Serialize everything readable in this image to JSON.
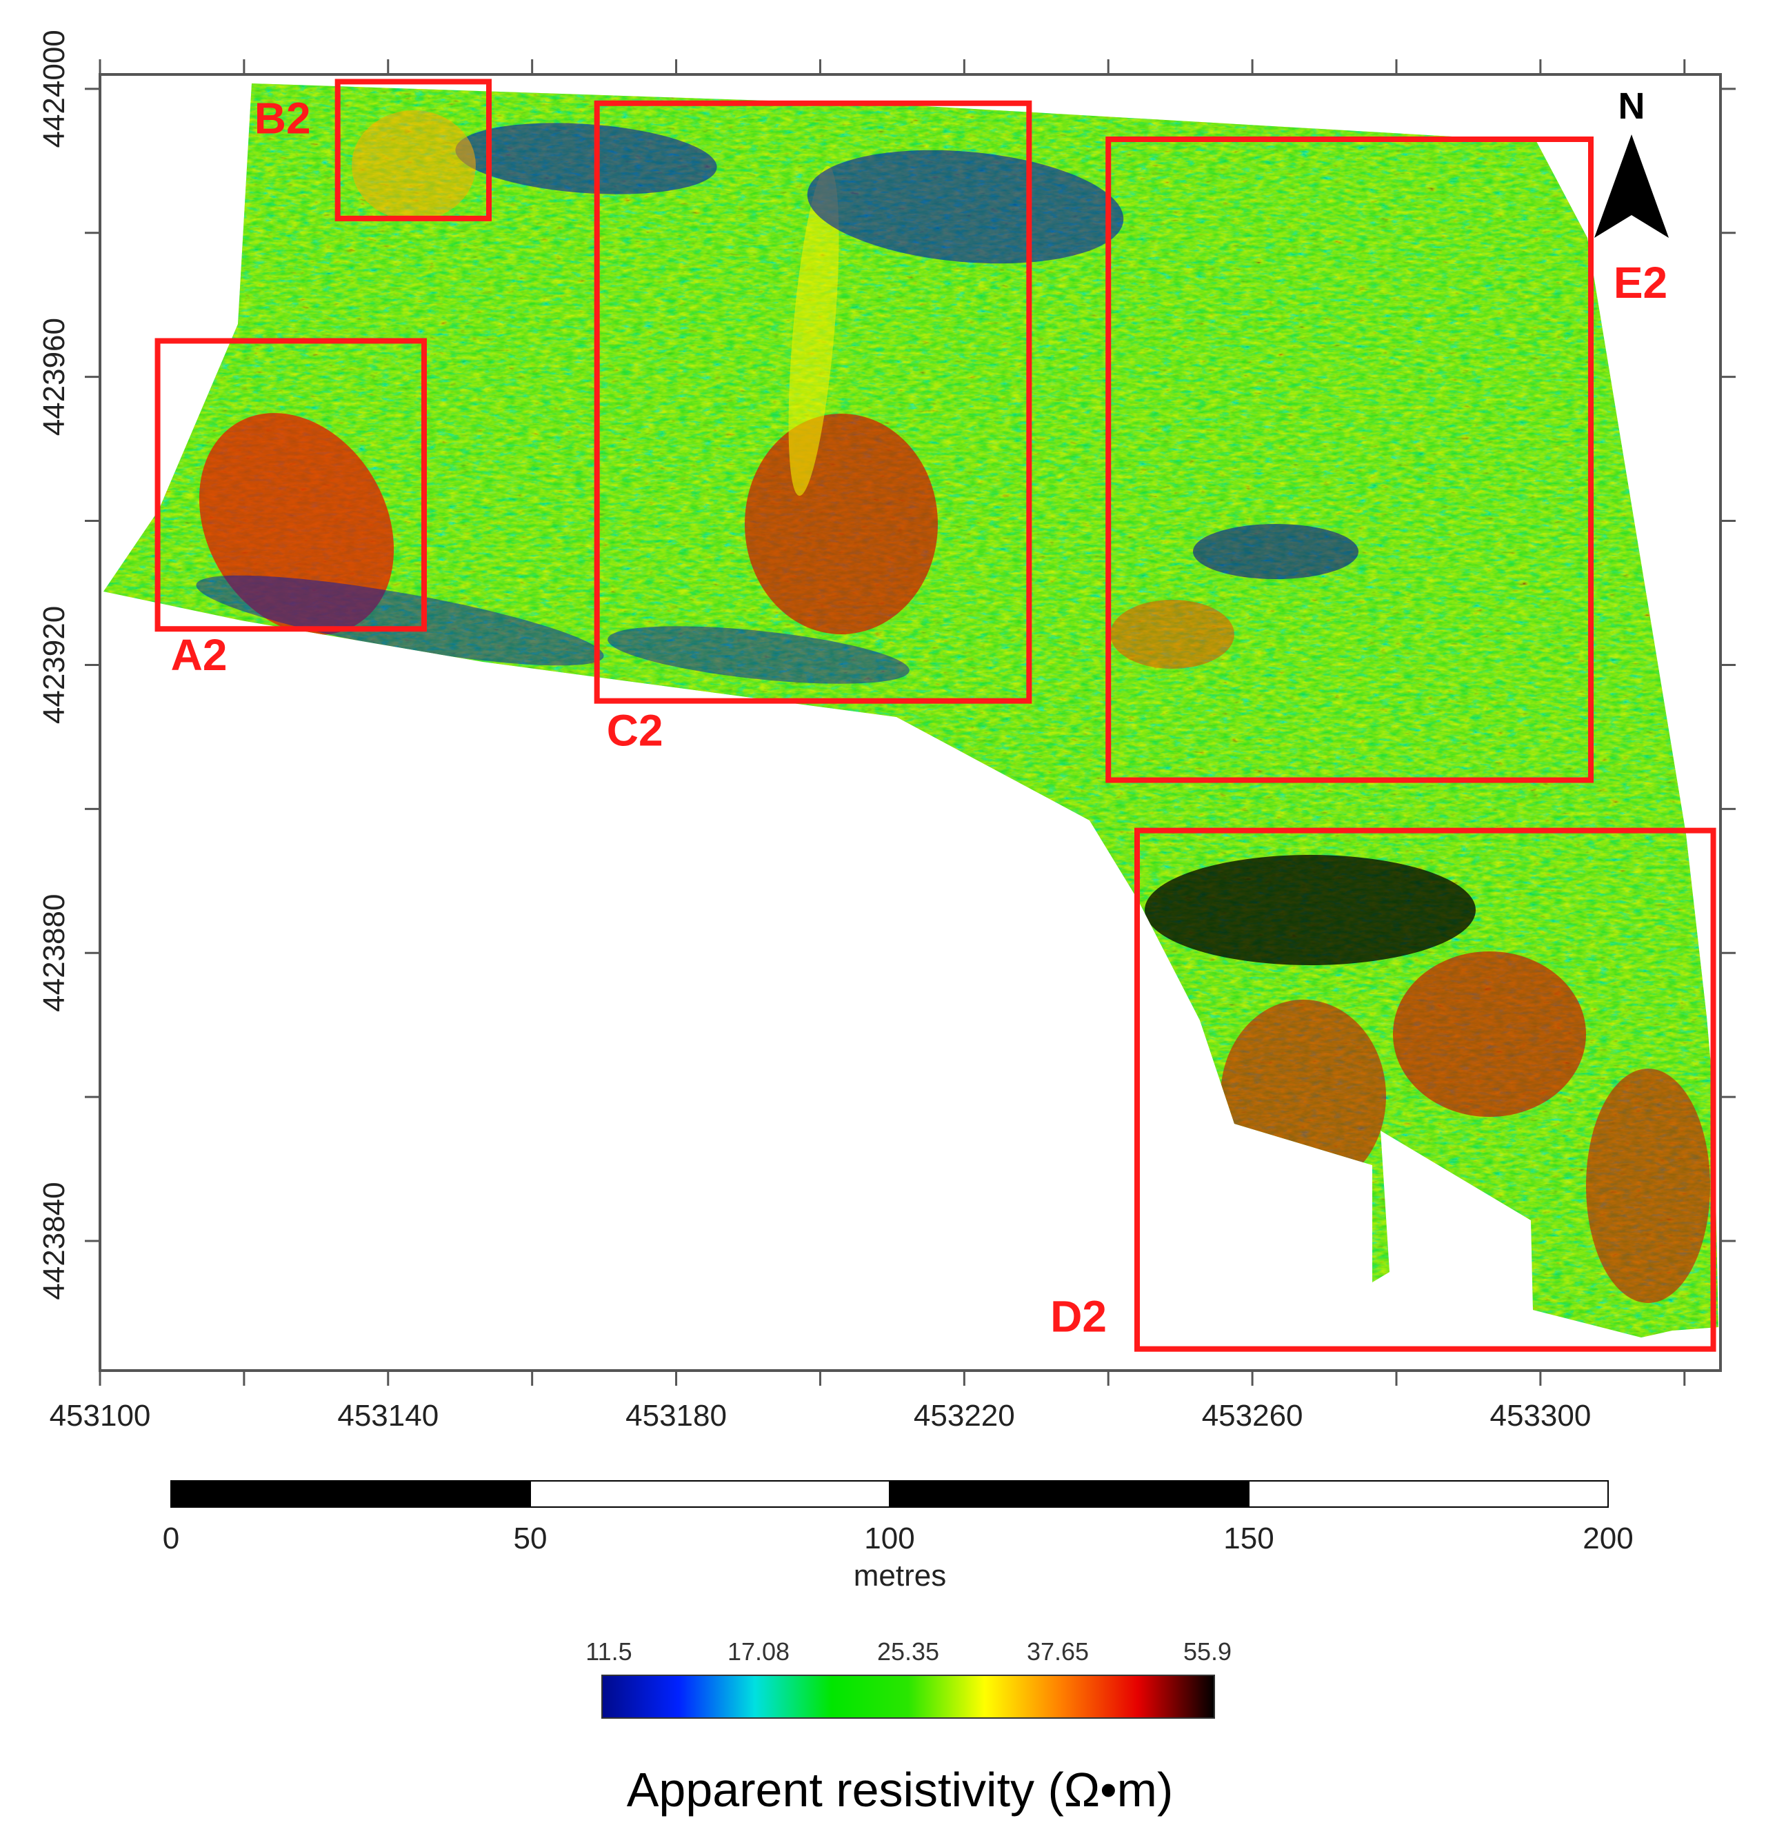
{
  "map": {
    "x_ticks": [
      {
        "value": "453100",
        "e": 453100
      },
      {
        "value": "453140",
        "e": 453140
      },
      {
        "value": "453180",
        "e": 453180
      },
      {
        "value": "453220",
        "e": 453220
      },
      {
        "value": "453260",
        "e": 453260
      },
      {
        "value": "453300",
        "e": 453300
      }
    ],
    "y_ticks": [
      {
        "value": "4424000",
        "n": 4424000
      },
      {
        "value": "4423960",
        "n": 4423960
      },
      {
        "value": "4423920",
        "n": 4423920
      },
      {
        "value": "4423880",
        "n": 4423880
      },
      {
        "value": "4423840",
        "n": 4423840
      }
    ],
    "x_range": [
      453100,
      453325
    ],
    "y_range": [
      4423822,
      4424002
    ],
    "north_label": "N",
    "zones": [
      {
        "label": "A2",
        "e_min": 453108,
        "e_max": 453145,
        "n_min": 4423925,
        "n_max": 4423965
      },
      {
        "label": "B2",
        "e_min": 453133,
        "e_max": 453154,
        "n_min": 4423982,
        "n_max": 4424001
      },
      {
        "label": "C2",
        "e_min": 453169,
        "e_max": 453229,
        "n_min": 4423915,
        "n_max": 4423998
      },
      {
        "label": "D2",
        "e_min": 453244,
        "e_max": 453324,
        "n_min": 4423825,
        "n_max": 4423897
      },
      {
        "label": "E2",
        "e_min": 453240,
        "e_max": 453307,
        "n_min": 4423904,
        "n_max": 4423993
      }
    ]
  },
  "scale_bar": {
    "labels": [
      "0",
      "50",
      "100",
      "150",
      "200"
    ],
    "unit": "metres"
  },
  "colorbar": {
    "labels": [
      "11.5",
      "17.08",
      "25.35",
      "37.65",
      "55.9"
    ],
    "title": "Apparent resistivity (Ω•m)",
    "colors": [
      "#000a8c",
      "#0022ff",
      "#00e0e0",
      "#00e600",
      "#2ae600",
      "#ffff00",
      "#ff7f00",
      "#e60000",
      "#000000"
    ]
  }
}
